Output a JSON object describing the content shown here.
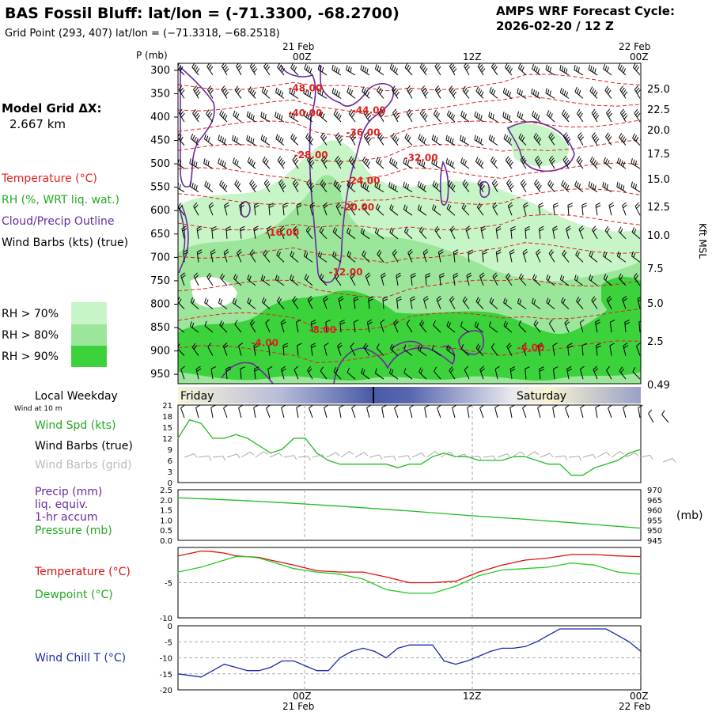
{
  "header": {
    "title": "BAS Fossil Bluff:  lat/lon = (-71.3300, -68.2700)",
    "grid_point": "Grid Point (293, 407) lat/lon = (−71.3318, −68.2518)",
    "cycle_label": "AMPS WRF Forecast Cycle:",
    "cycle_value": "2026-02-20 / 12  Z"
  },
  "time_axis": {
    "top_date_1": "21 Feb",
    "top_date_2": "22 Feb",
    "tick_00z": "00Z",
    "tick_12z": "12Z",
    "tick_00z_end": "00Z",
    "bottom_date_1": "21 Feb",
    "bottom_date_2": "22 Feb"
  },
  "legend": {
    "grid_dx_label": "Model Grid ΔX:",
    "grid_dx_value": "2.667 km",
    "temperature": "Temperature (°C)",
    "rh": "RH (%, WRT liq. wat.)",
    "cloud": "Cloud/Precip Outline",
    "wind": "Wind Barbs (kts) (true)",
    "rh70": "RH > 70%",
    "rh80": "RH > 80%",
    "rh90": "RH > 90%",
    "colors": {
      "rh70": "#c8f5c8",
      "rh80": "#9be69b",
      "rh90": "#3cd23c",
      "temp": "#e02020",
      "cloud": "#6a2a9a",
      "wind_chill": "#1a2aaa"
    }
  },
  "weekday": {
    "label": "Local Weekday",
    "wind_note": "Wind at 10 m",
    "day1": "Friday",
    "day2": "Saturday"
  },
  "panel_labels": {
    "wind_spd": "Wind Spd (kts)",
    "wind_barbs_true": "Wind Barbs (true)",
    "wind_barbs_grid": "Wind Barbs (grid)",
    "precip": "Precip (mm)",
    "precip_2": "liq. equiv.",
    "precip_3": "1-hr accum",
    "pressure": "Pressure (mb)",
    "pressure_units": "(mb)",
    "temperature": "Temperature (°C)",
    "dewpoint": "Dewpoint (°C)",
    "wind_chill": "Wind Chill T (°C)",
    "height_axis": "Kft MSL",
    "p_axis": "P (mb)"
  },
  "chart_data": [
    {
      "type": "heatmap",
      "title": "Time-height cross section",
      "ylabel": "P (mb)",
      "y_ticks": [
        "300",
        "350",
        "400",
        "450",
        "500",
        "550",
        "600",
        "650",
        "700",
        "750",
        "800",
        "850",
        "900",
        "950"
      ],
      "y2_ticks": [
        "25.0",
        "22.5",
        "20.0",
        "17.5",
        "15.0",
        "12.5",
        "10.0",
        "7.5",
        "5.0",
        "2.5",
        "0.49"
      ],
      "y2label": "Kft MSL",
      "x_ticks": [
        "00Z",
        "12Z",
        "00Z"
      ],
      "temperature_contours": [
        {
          "label": "-48.00",
          "p": 345,
          "t": 11
        },
        {
          "label": "-44.00",
          "p": 392,
          "t": 16.5
        },
        {
          "label": "-40.00",
          "p": 398,
          "t": 11
        },
        {
          "label": "-36.00",
          "p": 440,
          "t": 16
        },
        {
          "label": "-32.00",
          "p": 494,
          "t": 21
        },
        {
          "label": "-28.00",
          "p": 488,
          "t": 11.5
        },
        {
          "label": "-24.00",
          "p": 543,
          "t": 16
        },
        {
          "label": "-20.00",
          "p": 600,
          "t": 15.5
        },
        {
          "label": "-16.00",
          "p": 654,
          "t": 9
        },
        {
          "label": "-12.00",
          "p": 738,
          "t": 14.5
        },
        {
          "label": "-8.00",
          "p": 862,
          "t": 12.5
        },
        {
          "label": "-4.00",
          "p": 890,
          "t": 7.5
        },
        {
          "label": "-4.00",
          "p": 900,
          "t": 30.5
        }
      ]
    },
    {
      "type": "line",
      "title": "Wind Spd (kts)",
      "ylim": [
        0,
        21
      ],
      "y_ticks": [
        "0",
        "3",
        "6",
        "9",
        "12",
        "15",
        "18",
        "21"
      ],
      "series": [
        {
          "name": "Wind Spd (kts)",
          "color": "#22bb22",
          "x": [
            0,
            1,
            2,
            3,
            4,
            5,
            6,
            7,
            8,
            9,
            10,
            11,
            12,
            13,
            14,
            15,
            16,
            17,
            18,
            19,
            20,
            21,
            22,
            23,
            24,
            25,
            26,
            27,
            28,
            29,
            30,
            31,
            32,
            33,
            34,
            35,
            36,
            37,
            38,
            39,
            40
          ],
          "values": [
            12,
            17,
            16,
            12,
            12,
            13,
            12,
            10,
            8,
            9,
            12,
            12,
            8,
            6,
            5,
            5,
            5,
            5,
            5,
            4,
            5,
            5,
            7,
            8,
            7,
            7,
            6,
            6,
            6,
            7,
            7,
            6,
            5,
            5,
            2,
            2,
            4,
            5,
            6,
            8,
            9
          ]
        }
      ]
    },
    {
      "type": "line",
      "title": "Pressure (mb)",
      "ylim": [
        945,
        970
      ],
      "y_ticks": [
        "945",
        "950",
        "955",
        "960",
        "965",
        "970"
      ],
      "y_ticks_left": [
        "0.0",
        "0.5",
        "1.0",
        "1.5",
        "2.0",
        "2.5"
      ],
      "series": [
        {
          "name": "Pressure (mb)",
          "color": "#22bb22",
          "x": [
            0,
            5,
            10,
            15,
            20,
            25,
            30,
            35,
            40
          ],
          "values": [
            966.0,
            964.8,
            963.3,
            961.5,
            959.5,
            957.3,
            955.4,
            953.3,
            951.0
          ]
        }
      ]
    },
    {
      "type": "line",
      "title": "Temperature / Dewpoint (°C)",
      "ylim": [
        -10,
        0
      ],
      "y_ticks": [
        "-10",
        "-5"
      ],
      "series": [
        {
          "name": "Temperature (°C)",
          "color": "#dd1111",
          "x": [
            0,
            2,
            3,
            4,
            5,
            6,
            7,
            8,
            10,
            12,
            14,
            16,
            18,
            20,
            22,
            24,
            26,
            28,
            30,
            32,
            34,
            36,
            38,
            40
          ],
          "values": [
            -1.2,
            -0.5,
            -0.6,
            -0.8,
            -1.2,
            -1.3,
            -1.4,
            -1.8,
            -2.5,
            -3.3,
            -3.5,
            -3.5,
            -4.2,
            -5.0,
            -5.0,
            -4.8,
            -3.5,
            -2.5,
            -1.8,
            -1.5,
            -1.0,
            -1.0,
            -1.2,
            -1.3
          ]
        },
        {
          "name": "Dewpoint (°C)",
          "color": "#22cc22",
          "x": [
            0,
            2,
            4,
            5,
            6,
            7,
            8,
            10,
            12,
            14,
            16,
            18,
            20,
            22,
            24,
            26,
            28,
            30,
            32,
            34,
            36,
            38,
            40
          ],
          "values": [
            -3.5,
            -2.8,
            -1.8,
            -1.3,
            -1.3,
            -1.5,
            -2.0,
            -3.0,
            -3.5,
            -3.8,
            -4.5,
            -6.0,
            -6.5,
            -6.5,
            -5.5,
            -4.0,
            -3.2,
            -3.0,
            -2.8,
            -2.2,
            -2.5,
            -3.5,
            -3.8
          ]
        }
      ]
    },
    {
      "type": "line",
      "title": "Wind Chill T (°C)",
      "ylim": [
        -20,
        0
      ],
      "y_ticks": [
        "-20",
        "-15",
        "-10",
        "-5",
        "0"
      ],
      "series": [
        {
          "name": "Wind Chill T (°C)",
          "color": "#1a2aaa",
          "x": [
            0,
            1,
            2,
            3,
            4,
            5,
            6,
            7,
            8,
            9,
            10,
            11,
            12,
            13,
            14,
            15,
            16,
            17,
            18,
            19,
            20,
            21,
            22,
            23,
            24,
            25,
            26,
            27,
            28,
            29,
            30,
            31,
            32,
            33,
            34,
            35,
            36,
            37,
            38,
            39,
            40
          ],
          "values": [
            -15,
            -15.5,
            -16,
            -14,
            -12,
            -13,
            -14,
            -14,
            -13,
            -11,
            -11,
            -12.5,
            -14,
            -14,
            -10,
            -8,
            -7,
            -8,
            -10,
            -7,
            -6,
            -6,
            -6,
            -11,
            -12,
            -11,
            -9.5,
            -8,
            -7,
            -7,
            -6.5,
            -5,
            -3,
            -1,
            -1,
            -1,
            -1,
            -1,
            -3,
            -5,
            -8
          ]
        }
      ]
    }
  ]
}
